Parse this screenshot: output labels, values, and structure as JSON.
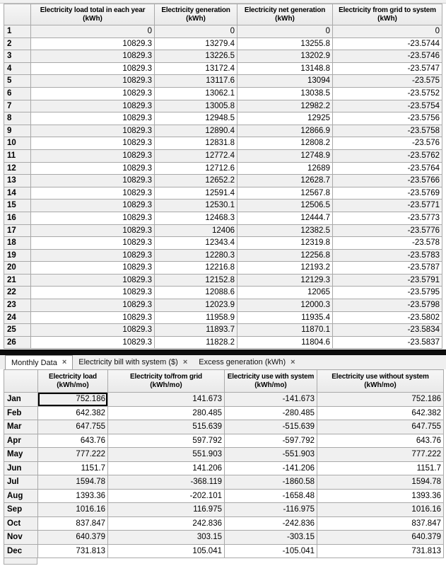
{
  "annual_table": {
    "columns": [
      {
        "title": "Electricity load total in each year",
        "unit": "(kWh)"
      },
      {
        "title": "Electricity generation",
        "unit": "(kWh)"
      },
      {
        "title": "Electricity net generation",
        "unit": "(kWh)"
      },
      {
        "title": "Electricity from grid to system",
        "unit": "(kWh)"
      }
    ],
    "rows": [
      {
        "label": "1",
        "values": [
          "0",
          "0",
          "0",
          "0"
        ]
      },
      {
        "label": "2",
        "values": [
          "10829.3",
          "13279.4",
          "13255.8",
          "-23.5744"
        ]
      },
      {
        "label": "3",
        "values": [
          "10829.3",
          "13226.5",
          "13202.9",
          "-23.5746"
        ]
      },
      {
        "label": "4",
        "values": [
          "10829.3",
          "13172.4",
          "13148.8",
          "-23.5747"
        ]
      },
      {
        "label": "5",
        "values": [
          "10829.3",
          "13117.6",
          "13094",
          "-23.575"
        ]
      },
      {
        "label": "6",
        "values": [
          "10829.3",
          "13062.1",
          "13038.5",
          "-23.5752"
        ]
      },
      {
        "label": "7",
        "values": [
          "10829.3",
          "13005.8",
          "12982.2",
          "-23.5754"
        ]
      },
      {
        "label": "8",
        "values": [
          "10829.3",
          "12948.5",
          "12925",
          "-23.5756"
        ]
      },
      {
        "label": "9",
        "values": [
          "10829.3",
          "12890.4",
          "12866.9",
          "-23.5758"
        ]
      },
      {
        "label": "10",
        "values": [
          "10829.3",
          "12831.8",
          "12808.2",
          "-23.576"
        ]
      },
      {
        "label": "11",
        "values": [
          "10829.3",
          "12772.4",
          "12748.9",
          "-23.5762"
        ]
      },
      {
        "label": "12",
        "values": [
          "10829.3",
          "12712.6",
          "12689",
          "-23.5764"
        ]
      },
      {
        "label": "13",
        "values": [
          "10829.3",
          "12652.2",
          "12628.7",
          "-23.5766"
        ]
      },
      {
        "label": "14",
        "values": [
          "10829.3",
          "12591.4",
          "12567.8",
          "-23.5769"
        ]
      },
      {
        "label": "15",
        "values": [
          "10829.3",
          "12530.1",
          "12506.5",
          "-23.5771"
        ]
      },
      {
        "label": "16",
        "values": [
          "10829.3",
          "12468.3",
          "12444.7",
          "-23.5773"
        ]
      },
      {
        "label": "17",
        "values": [
          "10829.3",
          "12406",
          "12382.5",
          "-23.5776"
        ]
      },
      {
        "label": "18",
        "values": [
          "10829.3",
          "12343.4",
          "12319.8",
          "-23.578"
        ]
      },
      {
        "label": "19",
        "values": [
          "10829.3",
          "12280.3",
          "12256.8",
          "-23.5783"
        ]
      },
      {
        "label": "20",
        "values": [
          "10829.3",
          "12216.8",
          "12193.2",
          "-23.5787"
        ]
      },
      {
        "label": "21",
        "values": [
          "10829.3",
          "12152.8",
          "12129.3",
          "-23.5791"
        ]
      },
      {
        "label": "22",
        "values": [
          "10829.3",
          "12088.6",
          "12065",
          "-23.5795"
        ]
      },
      {
        "label": "23",
        "values": [
          "10829.3",
          "12023.9",
          "12000.3",
          "-23.5798"
        ]
      },
      {
        "label": "24",
        "values": [
          "10829.3",
          "11958.9",
          "11935.4",
          "-23.5802"
        ]
      },
      {
        "label": "25",
        "values": [
          "10829.3",
          "11893.7",
          "11870.1",
          "-23.5834"
        ]
      },
      {
        "label": "26",
        "values": [
          "10829.3",
          "11828.2",
          "11804.6",
          "-23.5837"
        ]
      }
    ]
  },
  "tab_bar": {
    "tabs": [
      {
        "label": "Monthly Data",
        "close_glyph": "×",
        "active": true
      },
      {
        "label": "Electricity bill with system ($)",
        "close_glyph": "×",
        "active": false
      },
      {
        "label": "Excess generation (kWh)",
        "close_glyph": "×",
        "active": false
      }
    ]
  },
  "monthly_table": {
    "columns": [
      {
        "title": "Electricity load",
        "unit": "(kWh/mo)"
      },
      {
        "title": "Electricity to/from grid",
        "unit": "(kWh/mo)"
      },
      {
        "title": "Electricity use with system",
        "unit": "(kWh/mo)"
      },
      {
        "title": "Electricity use without system",
        "unit": "(kWh/mo)"
      }
    ],
    "rows": [
      {
        "label": "Jan",
        "values": [
          "752.186",
          "141.673",
          "-141.673",
          "752.186"
        ]
      },
      {
        "label": "Feb",
        "values": [
          "642.382",
          "280.485",
          "-280.485",
          "642.382"
        ]
      },
      {
        "label": "Mar",
        "values": [
          "647.755",
          "515.639",
          "-515.639",
          "647.755"
        ]
      },
      {
        "label": "Apr",
        "values": [
          "643.76",
          "597.792",
          "-597.792",
          "643.76"
        ]
      },
      {
        "label": "May",
        "values": [
          "777.222",
          "551.903",
          "-551.903",
          "777.222"
        ]
      },
      {
        "label": "Jun",
        "values": [
          "1151.7",
          "141.206",
          "-141.206",
          "1151.7"
        ]
      },
      {
        "label": "Jul",
        "values": [
          "1594.78",
          "-368.119",
          "-1860.58",
          "1594.78"
        ]
      },
      {
        "label": "Aug",
        "values": [
          "1393.36",
          "-202.101",
          "-1658.48",
          "1393.36"
        ]
      },
      {
        "label": "Sep",
        "values": [
          "1016.16",
          "116.975",
          "-116.975",
          "1016.16"
        ]
      },
      {
        "label": "Oct",
        "values": [
          "837.847",
          "242.836",
          "-242.836",
          "837.847"
        ]
      },
      {
        "label": "Nov",
        "values": [
          "640.379",
          "303.15",
          "-303.15",
          "640.379"
        ]
      },
      {
        "label": "Dec",
        "values": [
          "731.813",
          "105.041",
          "-105.041",
          "731.813"
        ]
      }
    ],
    "selection": {
      "row_index": 0,
      "col_index": 0
    }
  },
  "colors": {
    "selection_border": "#000000",
    "header_bg": "#eeeeee",
    "row_alt_bg": "#f0f0f0",
    "grid_line": "#a9a9a9",
    "tab_active_bg": "#ffffff",
    "divider": "#0d0d0d"
  }
}
